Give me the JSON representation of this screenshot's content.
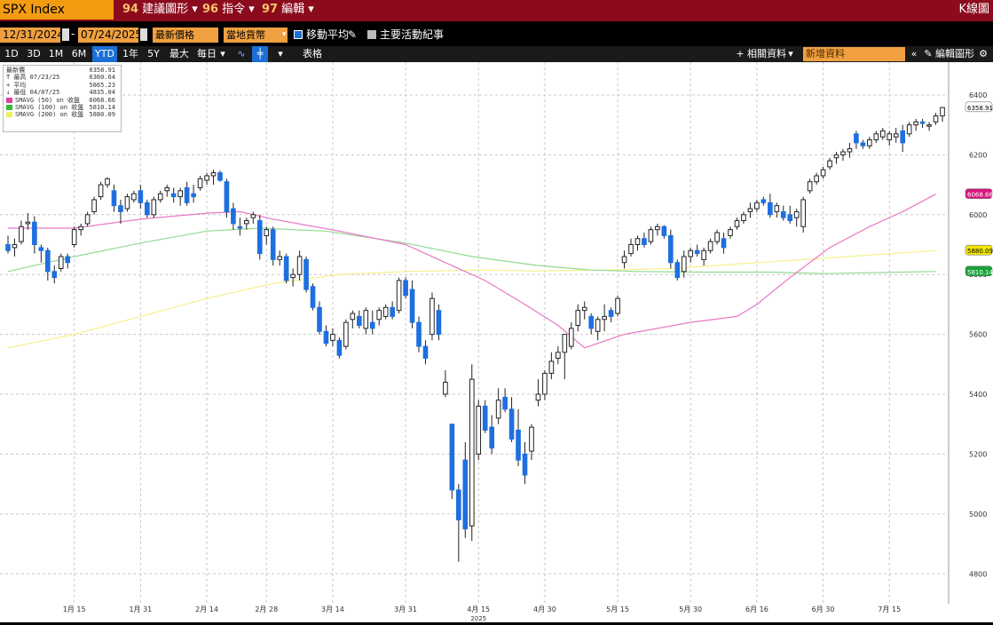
{
  "toolbar": {
    "ticker": "SPX Index",
    "menu": [
      {
        "num": "94",
        "label": "建議圖形"
      },
      {
        "num": "96",
        "label": "指令"
      },
      {
        "num": "97",
        "label": "編輯"
      }
    ],
    "kbutton": "K線圖"
  },
  "range": {
    "start": "12/31/2024",
    "end": "07/24/2025",
    "price_type": "最新價格",
    "currency": "當地貨幣",
    "moving_avg_label": "移動平均",
    "events_label": "主要活動紀事"
  },
  "timeframes": [
    "1D",
    "3D",
    "1M",
    "6M",
    "YTD",
    "1年",
    "5Y",
    "最大",
    "每日"
  ],
  "active_timeframe": "YTD",
  "toolbar3": {
    "table_label": "表格",
    "related_label": "相關資料",
    "search_placeholder": "新增資料",
    "edit_label": "編輯圖形"
  },
  "legend": {
    "rows": [
      {
        "label": "最新價",
        "value": "6358.91"
      },
      {
        "label": "T 最高 07/23/25",
        "value": "6360.64"
      },
      {
        "label": "+ 平均",
        "value": "5865.23"
      },
      {
        "label": "↓ 最低 04/07/25",
        "value": "4835.04"
      },
      {
        "label": "SMAVG (50) on 收盤",
        "value": "6068.66",
        "color": "#e040a0"
      },
      {
        "label": "SMAVG (100) on 收盤",
        "value": "5810.14",
        "color": "#33bb33"
      },
      {
        "label": "SMAVG (200) on 收盤",
        "value": "5880.09",
        "color": "#f0f060"
      }
    ]
  },
  "axis_badges": [
    {
      "value": "6358.91",
      "bg": "#ffffff",
      "fg": "#000000"
    },
    {
      "value": "6068.66",
      "bg": "#d6157e",
      "fg": "#ffffff"
    },
    {
      "value": "5880.09",
      "bg": "#f2e600",
      "fg": "#000000"
    },
    {
      "value": "5810.14",
      "bg": "#16a33a",
      "fg": "#ffffff"
    }
  ],
  "chart_data": {
    "type": "candlestick",
    "ylim": [
      4700,
      6480
    ],
    "yticks": [
      4800,
      5000,
      5200,
      5400,
      5600,
      5800,
      6000,
      6200,
      6400
    ],
    "xticks": [
      {
        "label": "1月 15",
        "i": 10
      },
      {
        "label": "1月 31",
        "i": 20
      },
      {
        "label": "2月 14",
        "i": 30
      },
      {
        "label": "2月 28",
        "i": 39
      },
      {
        "label": "3月 14",
        "i": 49
      },
      {
        "label": "3月 31",
        "i": 60
      },
      {
        "label": "4月 15",
        "i": 71
      },
      {
        "label": "4月 30",
        "i": 81
      },
      {
        "label": "5月 15",
        "i": 92
      },
      {
        "label": "5月 30",
        "i": 103
      },
      {
        "label": "6月 16",
        "i": 113
      },
      {
        "label": "6月 30",
        "i": 123
      },
      {
        "label": "7月 15",
        "i": 133
      }
    ],
    "year_label": "2025",
    "ohlc": [
      [
        5900,
        5930,
        5870,
        5880
      ],
      [
        5890,
        5920,
        5860,
        5900
      ],
      [
        5910,
        5980,
        5900,
        5960
      ],
      [
        5970,
        6005,
        5950,
        5975
      ],
      [
        5975,
        5995,
        5870,
        5900
      ],
      [
        5890,
        5900,
        5840,
        5880
      ],
      [
        5880,
        5890,
        5780,
        5810
      ],
      [
        5810,
        5830,
        5770,
        5790
      ],
      [
        5820,
        5870,
        5810,
        5860
      ],
      [
        5860,
        5870,
        5820,
        5840
      ],
      [
        5900,
        5960,
        5890,
        5950
      ],
      [
        5950,
        5970,
        5930,
        5960
      ],
      [
        5970,
        6010,
        5960,
        6000
      ],
      [
        6010,
        6060,
        6000,
        6050
      ],
      [
        6060,
        6110,
        6050,
        6100
      ],
      [
        6100,
        6125,
        6090,
        6120
      ],
      [
        6080,
        6100,
        6010,
        6030
      ],
      [
        6030,
        6050,
        5970,
        6010
      ],
      [
        6020,
        6070,
        6010,
        6060
      ],
      [
        6050,
        6080,
        6040,
        6070
      ],
      [
        6080,
        6100,
        6020,
        6040
      ],
      [
        6040,
        6050,
        5990,
        6000
      ],
      [
        6000,
        6060,
        5990,
        6050
      ],
      [
        6050,
        6080,
        6040,
        6070
      ],
      [
        6080,
        6100,
        6060,
        6090
      ],
      [
        6070,
        6090,
        6040,
        6060
      ],
      [
        6060,
        6090,
        6030,
        6080
      ],
      [
        6090,
        6110,
        6030,
        6040
      ],
      [
        6070,
        6100,
        6040,
        6060
      ],
      [
        6090,
        6130,
        6080,
        6120
      ],
      [
        6115,
        6140,
        6100,
        6130
      ],
      [
        6130,
        6150,
        6100,
        6140
      ],
      [
        6140,
        6147,
        6110,
        6115
      ],
      [
        6110,
        6120,
        5990,
        6010
      ],
      [
        6020,
        6040,
        5950,
        5970
      ],
      [
        5960,
        5990,
        5930,
        5955
      ],
      [
        5970,
        5990,
        5950,
        5980
      ],
      [
        5990,
        6010,
        5970,
        6000
      ],
      [
        5980,
        6000,
        5850,
        5870
      ],
      [
        5930,
        5960,
        5900,
        5950
      ],
      [
        5950,
        5960,
        5830,
        5850
      ],
      [
        5850,
        5880,
        5830,
        5860
      ],
      [
        5860,
        5870,
        5770,
        5780
      ],
      [
        5790,
        5820,
        5760,
        5800
      ],
      [
        5800,
        5880,
        5780,
        5860
      ],
      [
        5850,
        5860,
        5740,
        5750
      ],
      [
        5760,
        5770,
        5680,
        5690
      ],
      [
        5690,
        5710,
        5600,
        5610
      ],
      [
        5610,
        5630,
        5560,
        5570
      ],
      [
        5580,
        5620,
        5560,
        5600
      ],
      [
        5580,
        5590,
        5520,
        5530
      ],
      [
        5560,
        5650,
        5550,
        5640
      ],
      [
        5650,
        5680,
        5620,
        5670
      ],
      [
        5660,
        5680,
        5620,
        5630
      ],
      [
        5620,
        5690,
        5600,
        5680
      ],
      [
        5640,
        5680,
        5600,
        5620
      ],
      [
        5650,
        5690,
        5630,
        5680
      ],
      [
        5660,
        5700,
        5650,
        5690
      ],
      [
        5690,
        5710,
        5650,
        5660
      ],
      [
        5680,
        5790,
        5670,
        5780
      ],
      [
        5780,
        5790,
        5720,
        5730
      ],
      [
        5750,
        5780,
        5620,
        5640
      ],
      [
        5640,
        5660,
        5540,
        5560
      ],
      [
        5560,
        5580,
        5500,
        5520
      ],
      [
        5600,
        5740,
        5580,
        5720
      ],
      [
        5680,
        5700,
        5580,
        5600
      ],
      [
        5400,
        5480,
        5390,
        5440
      ],
      [
        5300,
        5300,
        5050,
        5080
      ],
      [
        5080,
        5100,
        4840,
        4980
      ],
      [
        5180,
        5240,
        4920,
        4950
      ],
      [
        4960,
        5500,
        4910,
        5450
      ],
      [
        5200,
        5380,
        5180,
        5360
      ],
      [
        5360,
        5380,
        5270,
        5280
      ],
      [
        5290,
        5330,
        5200,
        5220
      ],
      [
        5320,
        5420,
        5300,
        5380
      ],
      [
        5390,
        5420,
        5340,
        5350
      ],
      [
        5350,
        5390,
        5240,
        5250
      ],
      [
        5280,
        5350,
        5160,
        5180
      ],
      [
        5200,
        5240,
        5100,
        5130
      ],
      [
        5210,
        5300,
        5180,
        5290
      ],
      [
        5380,
        5450,
        5360,
        5400
      ],
      [
        5400,
        5480,
        5380,
        5470
      ],
      [
        5470,
        5540,
        5450,
        5510
      ],
      [
        5520,
        5560,
        5500,
        5540
      ],
      [
        5540,
        5600,
        5450,
        5600
      ],
      [
        5560,
        5640,
        5550,
        5620
      ],
      [
        5630,
        5700,
        5610,
        5680
      ],
      [
        5680,
        5710,
        5650,
        5690
      ],
      [
        5660,
        5670,
        5600,
        5620
      ],
      [
        5610,
        5660,
        5580,
        5650
      ],
      [
        5650,
        5700,
        5610,
        5660
      ],
      [
        5680,
        5690,
        5640,
        5660
      ],
      [
        5670,
        5730,
        5660,
        5720
      ],
      [
        5840,
        5880,
        5820,
        5860
      ],
      [
        5870,
        5920,
        5860,
        5900
      ],
      [
        5900,
        5930,
        5880,
        5920
      ],
      [
        5920,
        5940,
        5890,
        5900
      ],
      [
        5910,
        5960,
        5900,
        5950
      ],
      [
        5950,
        5970,
        5930,
        5960
      ],
      [
        5960,
        5965,
        5920,
        5930
      ],
      [
        5930,
        5950,
        5820,
        5840
      ],
      [
        5840,
        5850,
        5780,
        5790
      ],
      [
        5810,
        5880,
        5790,
        5860
      ],
      [
        5860,
        5890,
        5840,
        5880
      ],
      [
        5880,
        5900,
        5860,
        5870
      ],
      [
        5850,
        5890,
        5830,
        5880
      ],
      [
        5880,
        5920,
        5870,
        5910
      ],
      [
        5910,
        5950,
        5900,
        5940
      ],
      [
        5920,
        5940,
        5870,
        5890
      ],
      [
        5930,
        5960,
        5920,
        5950
      ],
      [
        5960,
        5990,
        5950,
        5980
      ],
      [
        5980,
        6010,
        5970,
        6000
      ],
      [
        6010,
        6040,
        5990,
        6020
      ],
      [
        6020,
        6050,
        6010,
        6040
      ],
      [
        6050,
        6060,
        6030,
        6040
      ],
      [
        6040,
        6070,
        5990,
        6000
      ],
      [
        6010,
        6040,
        5990,
        6030
      ],
      [
        6010,
        6030,
        5980,
        5990
      ],
      [
        6000,
        6030,
        5970,
        5980
      ],
      [
        5990,
        6020,
        5960,
        6010
      ],
      [
        5960,
        6060,
        5940,
        6050
      ],
      [
        6080,
        6120,
        6070,
        6110
      ],
      [
        6110,
        6140,
        6100,
        6130
      ],
      [
        6130,
        6160,
        6120,
        6150
      ],
      [
        6160,
        6190,
        6150,
        6180
      ],
      [
        6190,
        6210,
        6170,
        6200
      ],
      [
        6200,
        6220,
        6180,
        6210
      ],
      [
        6210,
        6240,
        6190,
        6220
      ],
      [
        6270,
        6280,
        6220,
        6240
      ],
      [
        6240,
        6250,
        6220,
        6230
      ],
      [
        6230,
        6260,
        6220,
        6250
      ],
      [
        6250,
        6280,
        6240,
        6270
      ],
      [
        6260,
        6290,
        6250,
        6280
      ],
      [
        6250,
        6280,
        6230,
        6270
      ],
      [
        6260,
        6290,
        6240,
        6270
      ],
      [
        6280,
        6300,
        6210,
        6240
      ],
      [
        6270,
        6310,
        6260,
        6300
      ],
      [
        6300,
        6320,
        6280,
        6310
      ],
      [
        6310,
        6320,
        6290,
        6305
      ],
      [
        6300,
        6310,
        6280,
        6300
      ],
      [
        6310,
        6340,
        6300,
        6330
      ],
      [
        6330,
        6360,
        6310,
        6358
      ]
    ],
    "sma50": [
      [
        0,
        5955
      ],
      [
        10,
        5955
      ],
      [
        20,
        5985
      ],
      [
        30,
        6005
      ],
      [
        35,
        6010
      ],
      [
        40,
        5985
      ],
      [
        50,
        5945
      ],
      [
        60,
        5900
      ],
      [
        65,
        5850
      ],
      [
        72,
        5780
      ],
      [
        78,
        5700
      ],
      [
        83,
        5630
      ],
      [
        87,
        5555
      ],
      [
        93,
        5600
      ],
      [
        103,
        5640
      ],
      [
        110,
        5660
      ],
      [
        113,
        5700
      ],
      [
        118,
        5790
      ],
      [
        124,
        5890
      ],
      [
        130,
        5960
      ],
      [
        135,
        6010
      ],
      [
        140,
        6068.66
      ]
    ],
    "sma100": [
      [
        0,
        5810
      ],
      [
        10,
        5860
      ],
      [
        20,
        5905
      ],
      [
        30,
        5945
      ],
      [
        38,
        5955
      ],
      [
        48,
        5945
      ],
      [
        60,
        5905
      ],
      [
        70,
        5860
      ],
      [
        80,
        5830
      ],
      [
        88,
        5815
      ],
      [
        95,
        5810
      ],
      [
        105,
        5808
      ],
      [
        115,
        5808
      ],
      [
        123,
        5803
      ],
      [
        130,
        5806
      ],
      [
        140,
        5810.14
      ]
    ],
    "sma200": [
      [
        0,
        5555
      ],
      [
        10,
        5600
      ],
      [
        20,
        5660
      ],
      [
        30,
        5720
      ],
      [
        40,
        5770
      ],
      [
        50,
        5800
      ],
      [
        60,
        5810
      ],
      [
        70,
        5815
      ],
      [
        80,
        5812
      ],
      [
        90,
        5815
      ],
      [
        100,
        5820
      ],
      [
        110,
        5835
      ],
      [
        120,
        5850
      ],
      [
        130,
        5865
      ],
      [
        140,
        5880.09
      ]
    ]
  }
}
